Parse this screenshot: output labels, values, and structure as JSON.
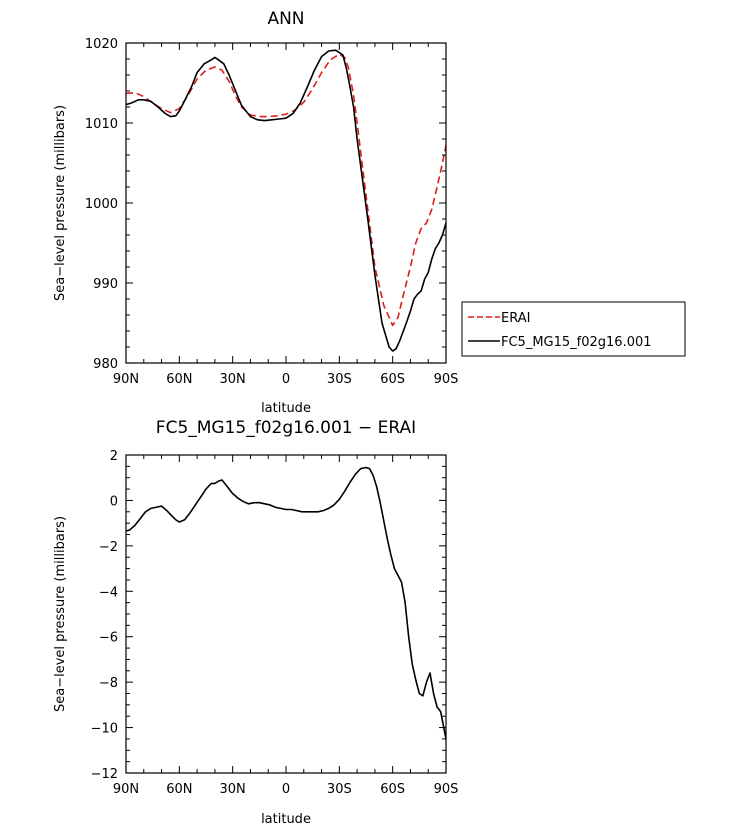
{
  "chart_data": [
    {
      "type": "line",
      "title": "ANN",
      "xlabel": "latitude",
      "ylabel": "Sea−level pressure (millibars)",
      "xlim": [
        90,
        -90
      ],
      "ylim": [
        980,
        1020
      ],
      "x_ticks": [
        90,
        60,
        30,
        0,
        -30,
        -60,
        -90
      ],
      "x_tick_labels": [
        "90N",
        "60N",
        "30N",
        "0",
        "30S",
        "60S",
        "90S"
      ],
      "y_ticks": [
        980,
        990,
        1000,
        1010,
        1020
      ],
      "y_tick_labels": [
        "980",
        "990",
        "1000",
        "1010",
        "1020"
      ],
      "legend": {
        "position": "right",
        "entries": [
          "ERAI",
          "FC5_MG15_f02g16.001"
        ]
      },
      "series": [
        {
          "name": "ERAI",
          "color": "#dd1c1c",
          "dash": "dashed",
          "x": [
            90,
            85,
            80,
            75,
            70,
            65,
            60,
            55,
            50,
            45,
            40,
            36,
            32,
            28,
            25,
            20,
            15,
            10,
            5,
            0,
            -5,
            -10,
            -15,
            -20,
            -25,
            -30,
            -33,
            -35,
            -38,
            -40,
            -45,
            -50,
            -55,
            -60,
            -63,
            -66,
            -70,
            -73,
            -76,
            -79,
            -82,
            -85,
            -88,
            -90
          ],
          "y": [
            1013.7,
            1013.8,
            1013.3,
            1012.5,
            1011.8,
            1011.3,
            1011.8,
            1013.5,
            1015.5,
            1016.6,
            1017.0,
            1016.6,
            1015.2,
            1013.2,
            1012.0,
            1011.0,
            1010.8,
            1010.8,
            1010.9,
            1011.1,
            1011.6,
            1012.6,
            1014.3,
            1016.3,
            1017.9,
            1018.6,
            1018.2,
            1017.0,
            1013.5,
            1010.0,
            1001.0,
            992.0,
            987.2,
            984.7,
            985.7,
            988.5,
            992.0,
            995.0,
            996.8,
            997.5,
            999.2,
            1002.0,
            1005.0,
            1007.2
          ]
        },
        {
          "name": "FC5_MG15_f02g16.001",
          "color": "#000000",
          "dash": "solid",
          "x": [
            90,
            87,
            83,
            80,
            76,
            72,
            68,
            65,
            62,
            60,
            57,
            53,
            50,
            46,
            42,
            40,
            38,
            35,
            32,
            28,
            25,
            20,
            16,
            12,
            8,
            4,
            0,
            -4,
            -8,
            -12,
            -16,
            -20,
            -24,
            -28,
            -32,
            -34,
            -36,
            -38,
            -40,
            -43,
            -46,
            -50,
            -54,
            -58,
            -60,
            -62,
            -64,
            -66,
            -68,
            -70,
            -72,
            -74,
            -76,
            -78,
            -80,
            -82,
            -84,
            -86,
            -88,
            -90
          ],
          "y": [
            1012.3,
            1012.5,
            1012.9,
            1012.9,
            1012.7,
            1012.0,
            1011.2,
            1010.8,
            1010.9,
            1011.5,
            1012.8,
            1014.6,
            1016.3,
            1017.4,
            1017.9,
            1018.2,
            1017.9,
            1017.4,
            1016.0,
            1013.8,
            1012.2,
            1010.8,
            1010.4,
            1010.3,
            1010.4,
            1010.5,
            1010.6,
            1011.2,
            1012.5,
            1014.5,
            1016.6,
            1018.3,
            1019.0,
            1019.1,
            1018.5,
            1016.8,
            1014.5,
            1012.0,
            1008.0,
            1003.0,
            998.0,
            991.0,
            985.0,
            982.0,
            981.5,
            981.8,
            982.8,
            984.0,
            985.2,
            986.5,
            988.0,
            988.6,
            989.0,
            990.5,
            991.3,
            993.0,
            994.3,
            995.0,
            996.0,
            997.5
          ]
        }
      ]
    },
    {
      "type": "line",
      "title": "FC5_MG15_f02g16.001 − ERAI",
      "xlabel": "latitude",
      "ylabel": "Sea−level pressure (millibars)",
      "xlim": [
        90,
        -90
      ],
      "ylim": [
        -12,
        2
      ],
      "x_ticks": [
        90,
        60,
        30,
        0,
        -30,
        -60,
        -90
      ],
      "x_tick_labels": [
        "90N",
        "60N",
        "30N",
        "0",
        "30S",
        "60S",
        "90S"
      ],
      "y_ticks": [
        -12,
        -10,
        -8,
        -6,
        -4,
        -2,
        0,
        2
      ],
      "y_tick_labels": [
        "−12",
        "−10",
        "−8",
        "−6",
        "−4",
        "−2",
        "0",
        "2"
      ],
      "series": [
        {
          "color": "#000000",
          "dash": "solid",
          "x": [
            90,
            88,
            85,
            82,
            79,
            76,
            73,
            70,
            67,
            64,
            62,
            60,
            57,
            54,
            51,
            48,
            45,
            42,
            40,
            38,
            36,
            33,
            30,
            27,
            24,
            21,
            18,
            15,
            12,
            9,
            6,
            3,
            0,
            -3,
            -6,
            -9,
            -12,
            -15,
            -18,
            -21,
            -24,
            -27,
            -30,
            -33,
            -36,
            -39,
            -42,
            -45,
            -47,
            -49,
            -51,
            -53,
            -55,
            -57,
            -59,
            -61,
            -63,
            -65,
            -67,
            -69,
            -71,
            -73,
            -75,
            -77,
            -79,
            -81,
            -83,
            -85,
            -87,
            -89,
            -90
          ],
          "y": [
            -1.35,
            -1.3,
            -1.1,
            -0.8,
            -0.5,
            -0.35,
            -0.3,
            -0.25,
            -0.45,
            -0.7,
            -0.85,
            -0.95,
            -0.85,
            -0.55,
            -0.2,
            0.15,
            0.5,
            0.75,
            0.75,
            0.85,
            0.9,
            0.6,
            0.3,
            0.1,
            -0.05,
            -0.15,
            -0.1,
            -0.1,
            -0.15,
            -0.2,
            -0.3,
            -0.35,
            -0.4,
            -0.4,
            -0.45,
            -0.5,
            -0.5,
            -0.5,
            -0.5,
            -0.45,
            -0.35,
            -0.2,
            0.05,
            0.4,
            0.8,
            1.15,
            1.4,
            1.45,
            1.4,
            1.1,
            0.6,
            -0.1,
            -0.9,
            -1.7,
            -2.4,
            -3.0,
            -3.3,
            -3.6,
            -4.5,
            -6.0,
            -7.2,
            -7.9,
            -8.5,
            -8.6,
            -8.0,
            -7.6,
            -8.5,
            -9.1,
            -9.3,
            -10.1,
            -10.5
          ]
        }
      ]
    }
  ]
}
